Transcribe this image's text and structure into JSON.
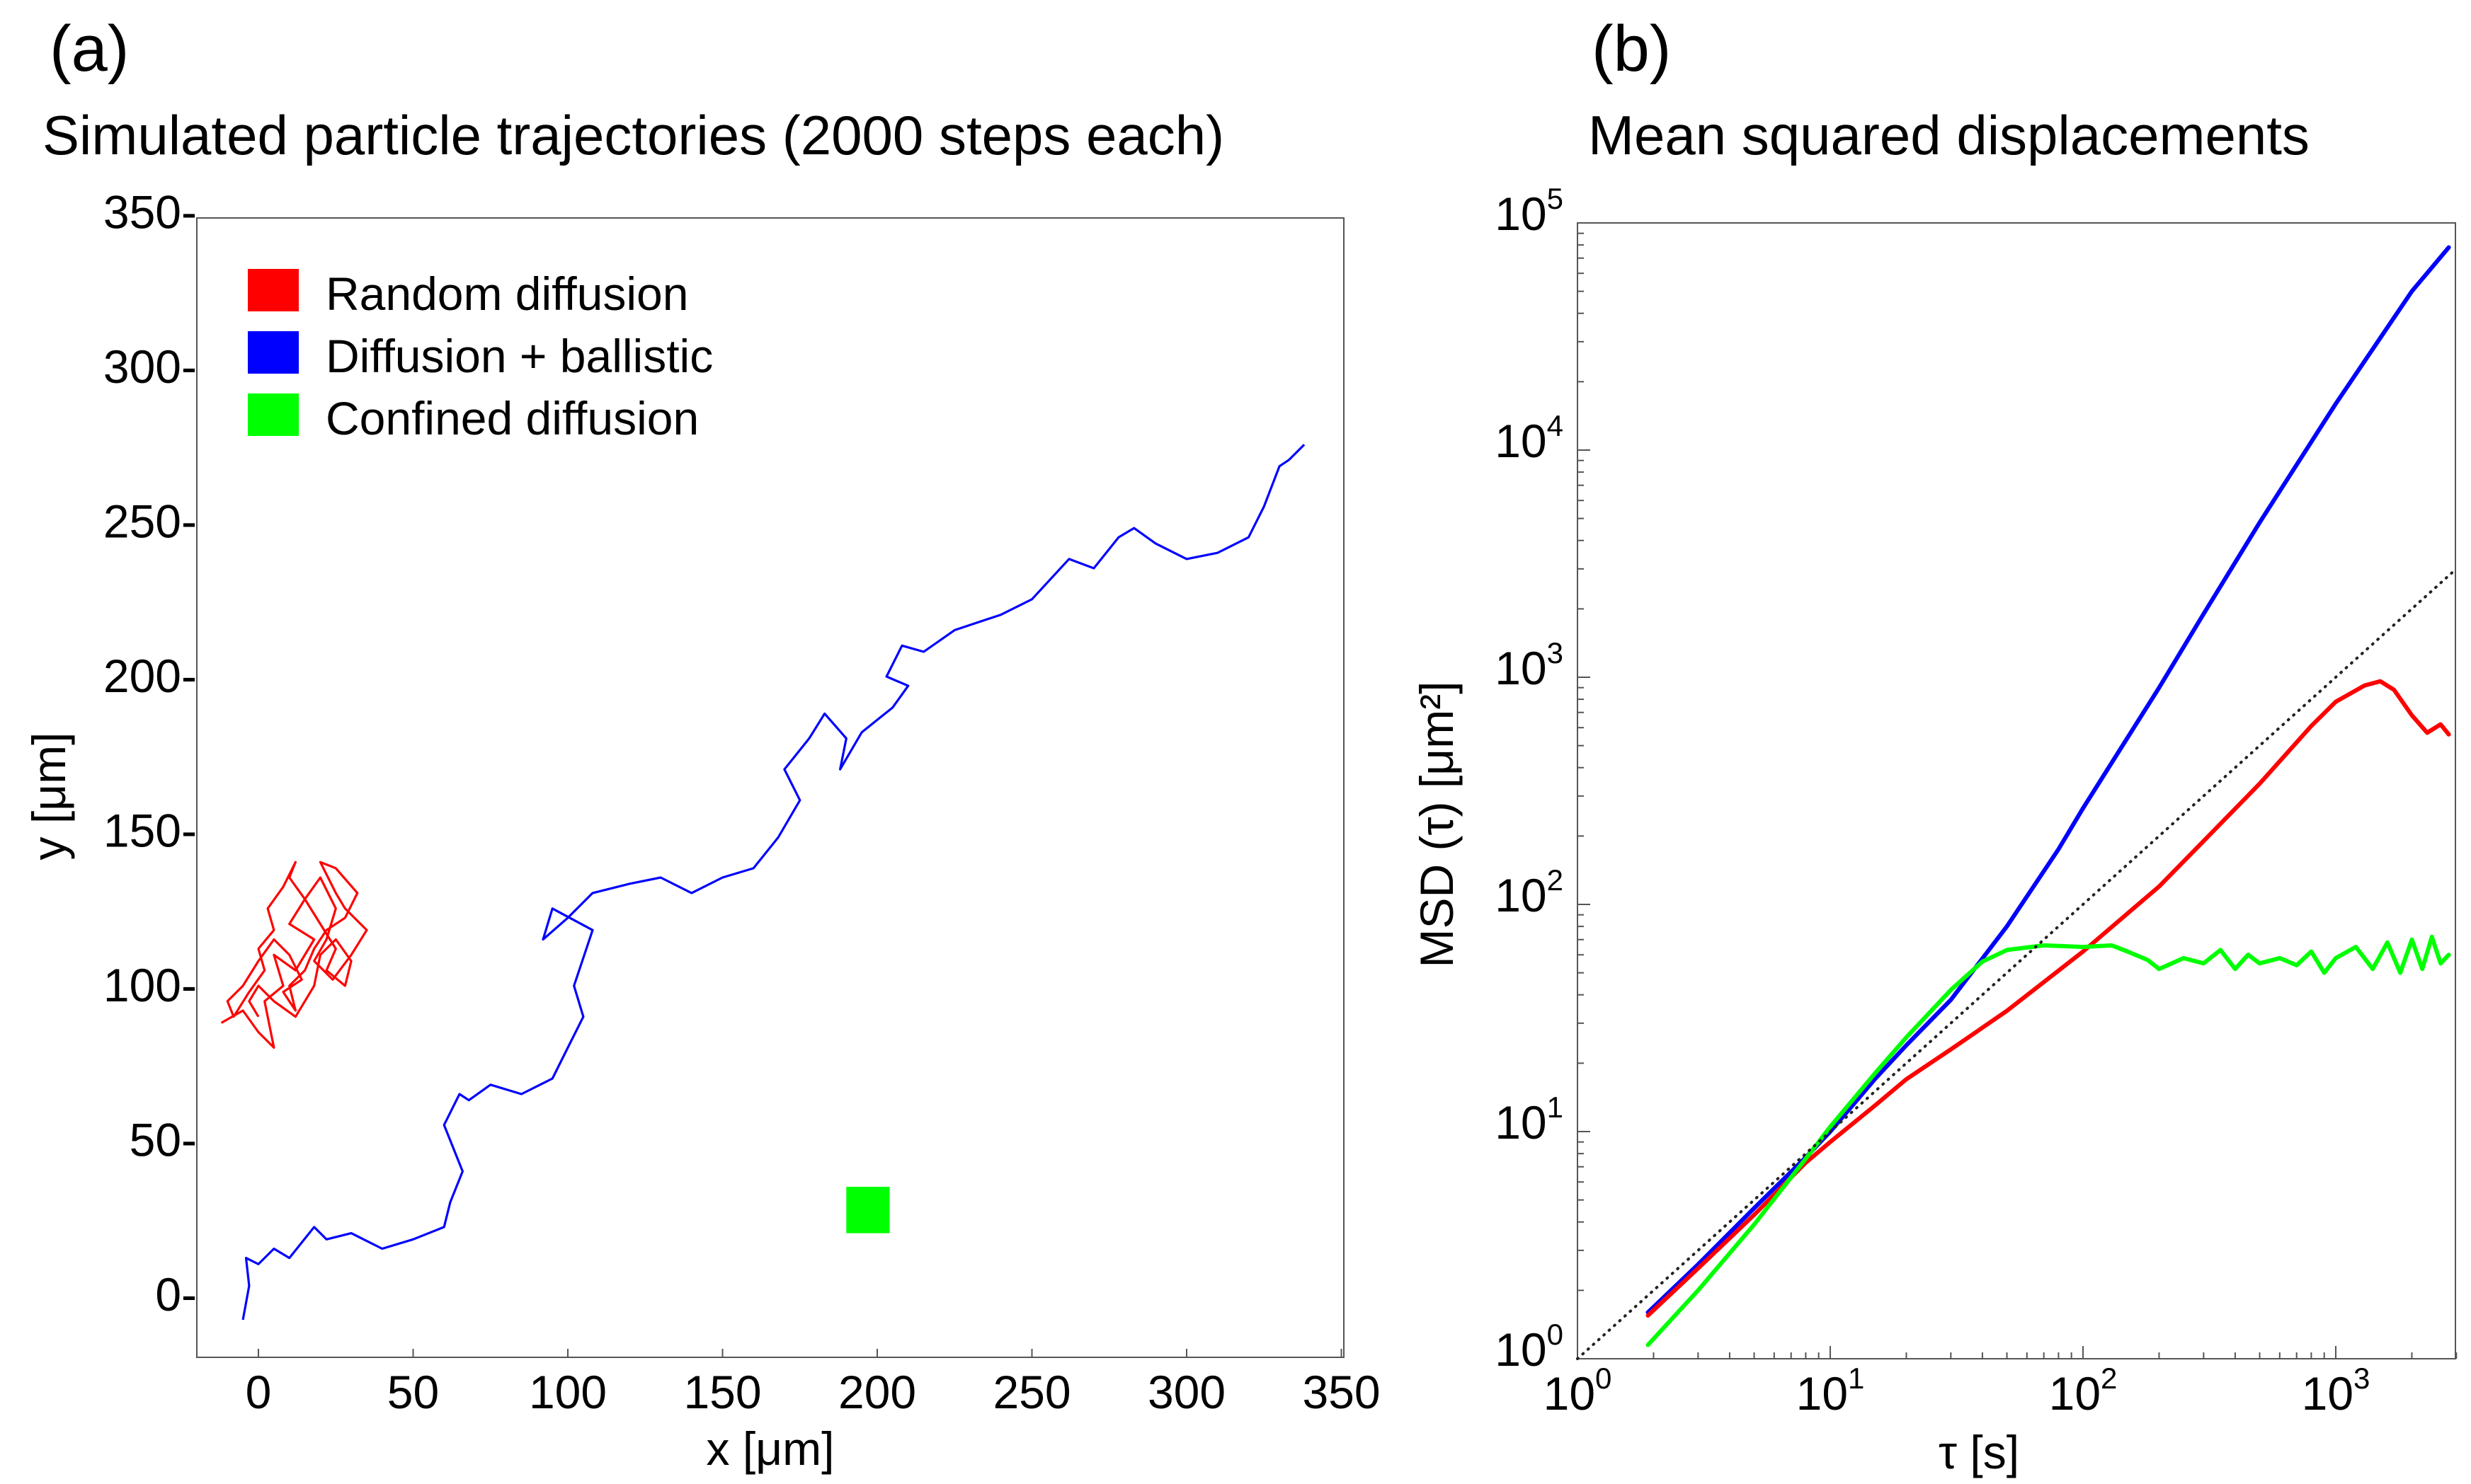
{
  "chart_data": [
    {
      "panel_label": "(a)",
      "type": "line",
      "title": "Simulated particle trajectories (2000 steps each)",
      "xlabel": "x [μm]",
      "ylabel": "y [μm]",
      "xlim": [
        -20,
        350
      ],
      "ylim": [
        -20,
        350
      ],
      "xticks": [
        0,
        50,
        100,
        150,
        200,
        250,
        300,
        350
      ],
      "yticks": [
        0,
        50,
        100,
        150,
        200,
        250,
        300,
        350
      ],
      "xtick_labels": [
        "0",
        "50",
        "100",
        "150",
        "200",
        "250",
        "300",
        "350"
      ],
      "ytick_labels": [
        "0-",
        "50-",
        "100-",
        "150-",
        "200-",
        "250-",
        "300-",
        "350-"
      ],
      "legend": {
        "placement": "top-left",
        "items": [
          {
            "label": "Random diffusion",
            "color": "#ff0000"
          },
          {
            "label": "Diffusion + ballistic",
            "color": "#0000ff"
          },
          {
            "label": "Confined diffusion",
            "color": "#00ff00"
          }
        ]
      },
      "series": [
        {
          "name": "Diffusion + ballistic",
          "color": "#0000ff",
          "x": [
            -5,
            -3,
            -4,
            0,
            5,
            10,
            18,
            22,
            30,
            40,
            50,
            60,
            62,
            66,
            60,
            65,
            68,
            75,
            85,
            95,
            100,
            105,
            102,
            108,
            95,
            92,
            100,
            108,
            120,
            130,
            140,
            150,
            160,
            168,
            175,
            170,
            178,
            183,
            190,
            188,
            195,
            205,
            210,
            203,
            208,
            215,
            225,
            240,
            250,
            262,
            270,
            278,
            283,
            290,
            300,
            310,
            320,
            325,
            330,
            333,
            338
          ],
          "y": [
            -8,
            3,
            12,
            10,
            15,
            12,
            22,
            18,
            20,
            15,
            18,
            22,
            30,
            40,
            55,
            65,
            63,
            68,
            65,
            70,
            80,
            90,
            100,
            118,
            125,
            115,
            122,
            130,
            133,
            135,
            130,
            135,
            138,
            148,
            160,
            170,
            180,
            188,
            180,
            170,
            182,
            190,
            197,
            200,
            210,
            208,
            215,
            220,
            225,
            238,
            235,
            245,
            248,
            243,
            238,
            240,
            245,
            255,
            268,
            270,
            275
          ]
        },
        {
          "name": "Random diffusion",
          "color": "#ff0000",
          "x": [
            -12,
            -5,
            0,
            5,
            2,
            8,
            5,
            12,
            18,
            10,
            15,
            20,
            25,
            22,
            18,
            24,
            30,
            35,
            28,
            25,
            20,
            25,
            32,
            28,
            22,
            18,
            15,
            10,
            12,
            8,
            14,
            10,
            5,
            0,
            -5,
            -10,
            -8,
            -3,
            2,
            0,
            5,
            3,
            8,
            12,
            10,
            15,
            20,
            25,
            22,
            28,
            30,
            25,
            20,
            18,
            15,
            12,
            5,
            0,
            -3,
            0
          ],
          "y": [
            88,
            92,
            85,
            80,
            95,
            100,
            110,
            105,
            115,
            120,
            128,
            135,
            125,
            115,
            108,
            102,
            110,
            118,
            125,
            130,
            140,
            138,
            130,
            122,
            118,
            112,
            105,
            100,
            92,
            98,
            102,
            110,
            115,
            108,
            100,
            95,
            90,
            98,
            105,
            112,
            118,
            125,
            132,
            140,
            135,
            128,
            120,
            112,
            105,
            100,
            108,
            115,
            110,
            100,
            95,
            90,
            95,
            100,
            95,
            90
          ]
        },
        {
          "name": "Confined diffusion",
          "color": "#00ff00",
          "x_range": [
            190,
            204
          ],
          "y_range": [
            20,
            35
          ]
        }
      ]
    },
    {
      "panel_label": "(b)",
      "type": "line",
      "title": "Mean squared displacements",
      "xlabel": "τ [s]",
      "ylabel": "MSD (τ) [μm²]",
      "xscale": "log",
      "yscale": "log",
      "xlim": [
        1,
        3000
      ],
      "ylim": [
        1,
        100000
      ],
      "xtick_labels": [
        {
          "value": 1,
          "base": "10",
          "exp": "0"
        },
        {
          "value": 10,
          "base": "10",
          "exp": "1"
        },
        {
          "value": 100,
          "base": "10",
          "exp": "2"
        },
        {
          "value": 1000,
          "base": "10",
          "exp": "3"
        }
      ],
      "ytick_labels": [
        {
          "value": 1,
          "base": "10",
          "exp": "0"
        },
        {
          "value": 10,
          "base": "10",
          "exp": "1"
        },
        {
          "value": 100,
          "base": "10",
          "exp": "2"
        },
        {
          "value": 1000,
          "base": "10",
          "exp": "3"
        },
        {
          "value": 10000,
          "base": "10",
          "exp": "4"
        },
        {
          "value": 100000,
          "base": "10",
          "exp": "5"
        }
      ],
      "series": [
        {
          "name": "Diffusion + ballistic",
          "color": "#0000ff",
          "style": "solid",
          "x": [
            1.9,
            3,
            5,
            8,
            10,
            15,
            20,
            30,
            50,
            80,
            100,
            200,
            300,
            500,
            1000,
            2000,
            2800
          ],
          "y": [
            1.6,
            2.6,
            4.6,
            7.7,
            10,
            17,
            24,
            38,
            80,
            175,
            265,
            900,
            1900,
            4800,
            16000,
            50000,
            78000
          ]
        },
        {
          "name": "Random diffusion",
          "color": "#ff0000",
          "style": "solid",
          "x": [
            1.9,
            3,
            5,
            8,
            10,
            15,
            20,
            30,
            50,
            100,
            200,
            300,
            500,
            800,
            1000,
            1300,
            1500,
            1700,
            2000,
            2300,
            2600,
            2800
          ],
          "y": [
            1.55,
            2.5,
            4.3,
            7.3,
            9.0,
            13,
            17,
            23,
            34,
            62,
            120,
            190,
            340,
            610,
            780,
            920,
            960,
            880,
            680,
            570,
            620,
            560
          ]
        },
        {
          "name": "Confined diffusion",
          "color": "#00ff00",
          "style": "solid",
          "x": [
            1.9,
            3,
            5,
            8,
            10,
            15,
            20,
            30,
            40,
            50,
            70,
            100,
            130,
            150,
            180,
            200,
            250,
            300,
            350,
            400,
            450,
            500,
            600,
            700,
            800,
            900,
            1000,
            1200,
            1400,
            1600,
            1800,
            2000,
            2200,
            2400,
            2600,
            2800
          ],
          "y": [
            1.15,
            2.0,
            3.9,
            7.6,
            10.5,
            18,
            26,
            42,
            56,
            63,
            66,
            65,
            66,
            62,
            57,
            52,
            58,
            55,
            63,
            52,
            60,
            55,
            58,
            54,
            62,
            50,
            58,
            65,
            52,
            68,
            50,
            70,
            52,
            72,
            55,
            60
          ]
        },
        {
          "name": "Reference slope",
          "color": "#222222",
          "style": "dotted",
          "x": [
            1,
            3000
          ],
          "y": [
            1,
            3000
          ]
        }
      ]
    }
  ]
}
